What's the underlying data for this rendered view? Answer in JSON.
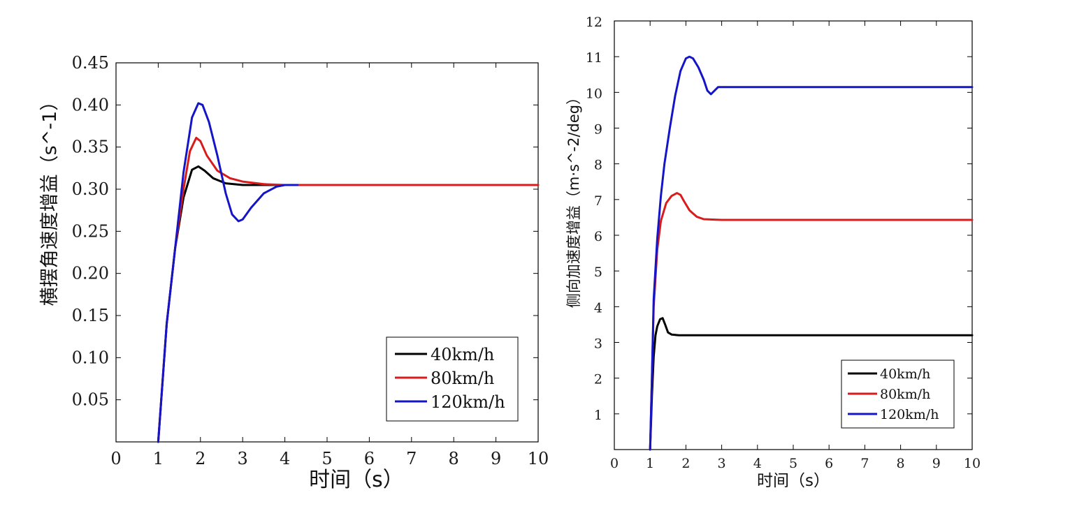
{
  "chart_data": [
    {
      "type": "line",
      "title": "",
      "xlabel": "时间（s）",
      "ylabel": "横摆角速度增益（s^-1）",
      "xlim": [
        0,
        10
      ],
      "ylim": [
        0,
        0.45
      ],
      "xticks": [
        "0",
        "1",
        "2",
        "3",
        "4",
        "5",
        "6",
        "7",
        "8",
        "9",
        "10"
      ],
      "yticks": [
        "0.05",
        "0.10",
        "0.15",
        "0.20",
        "0.25",
        "0.30",
        "0.35",
        "0.40",
        "0.45"
      ],
      "legend_position": "bottom-right",
      "series": [
        {
          "name": "40km/h",
          "color": "#000000",
          "x": [
            1.0,
            1.2,
            1.4,
            1.6,
            1.8,
            1.95,
            2.1,
            2.3,
            2.6,
            3.0,
            3.5,
            4.0,
            4.3
          ],
          "y": [
            0.0,
            0.14,
            0.23,
            0.29,
            0.323,
            0.327,
            0.322,
            0.313,
            0.307,
            0.305,
            0.305,
            0.305,
            0.305
          ]
        },
        {
          "name": "80km/h",
          "color": "#d81b1b",
          "x": [
            1.0,
            1.2,
            1.4,
            1.6,
            1.75,
            1.9,
            2.0,
            2.15,
            2.4,
            2.7,
            3.0,
            3.5,
            4.0,
            5.0,
            7.0,
            10.0
          ],
          "y": [
            0.0,
            0.14,
            0.23,
            0.3,
            0.345,
            0.361,
            0.357,
            0.34,
            0.322,
            0.313,
            0.309,
            0.306,
            0.305,
            0.305,
            0.305,
            0.305
          ]
        },
        {
          "name": "120km/h",
          "color": "#1515c8",
          "x": [
            1.0,
            1.2,
            1.4,
            1.6,
            1.8,
            1.95,
            2.05,
            2.2,
            2.4,
            2.6,
            2.75,
            2.9,
            3.0,
            3.2,
            3.5,
            3.8,
            4.0,
            4.3
          ],
          "y": [
            0.0,
            0.14,
            0.23,
            0.32,
            0.385,
            0.402,
            0.4,
            0.38,
            0.34,
            0.295,
            0.27,
            0.262,
            0.264,
            0.278,
            0.295,
            0.303,
            0.305,
            0.305
          ]
        }
      ]
    },
    {
      "type": "line",
      "title": "",
      "xlabel": "时间（s）",
      "ylabel": "侧向加速度增益（m·s^-2/deg）",
      "xlim": [
        0,
        10
      ],
      "ylim": [
        0,
        12
      ],
      "xticks": [
        "0",
        "1",
        "2",
        "3",
        "4",
        "5",
        "6",
        "7",
        "8",
        "9",
        "10"
      ],
      "yticks": [
        "1",
        "2",
        "3",
        "4",
        "5",
        "6",
        "7",
        "8",
        "9",
        "10",
        "11",
        "12"
      ],
      "legend_position": "bottom-right",
      "series": [
        {
          "name": "40km/h",
          "color": "#000000",
          "x": [
            1.0,
            1.05,
            1.1,
            1.15,
            1.2,
            1.28,
            1.35,
            1.42,
            1.5,
            1.6,
            1.8,
            2.5,
            5.0,
            10.0
          ],
          "y": [
            0.0,
            1.5,
            2.6,
            3.2,
            3.45,
            3.65,
            3.68,
            3.5,
            3.28,
            3.22,
            3.2,
            3.2,
            3.2,
            3.2
          ]
        },
        {
          "name": "80km/h",
          "color": "#d81b1b",
          "x": [
            1.0,
            1.05,
            1.1,
            1.2,
            1.3,
            1.45,
            1.6,
            1.75,
            1.85,
            1.95,
            2.1,
            2.3,
            2.5,
            3.0,
            5.0,
            10.0
          ],
          "y": [
            0.0,
            2.0,
            4.0,
            5.6,
            6.4,
            6.9,
            7.1,
            7.18,
            7.13,
            6.95,
            6.7,
            6.52,
            6.45,
            6.43,
            6.43,
            6.43
          ]
        },
        {
          "name": "120km/h",
          "color": "#1515c8",
          "x": [
            1.0,
            1.05,
            1.1,
            1.2,
            1.3,
            1.4,
            1.55,
            1.7,
            1.85,
            2.0,
            2.1,
            2.2,
            2.35,
            2.5,
            2.6,
            2.7,
            2.8,
            2.9,
            3.0,
            5.0,
            10.0
          ],
          "y": [
            0.0,
            2.0,
            4.2,
            5.9,
            7.1,
            8.0,
            9.0,
            9.9,
            10.6,
            10.95,
            11.0,
            10.95,
            10.7,
            10.35,
            10.05,
            9.95,
            10.05,
            10.15,
            10.15,
            10.15,
            10.15
          ]
        }
      ]
    }
  ]
}
